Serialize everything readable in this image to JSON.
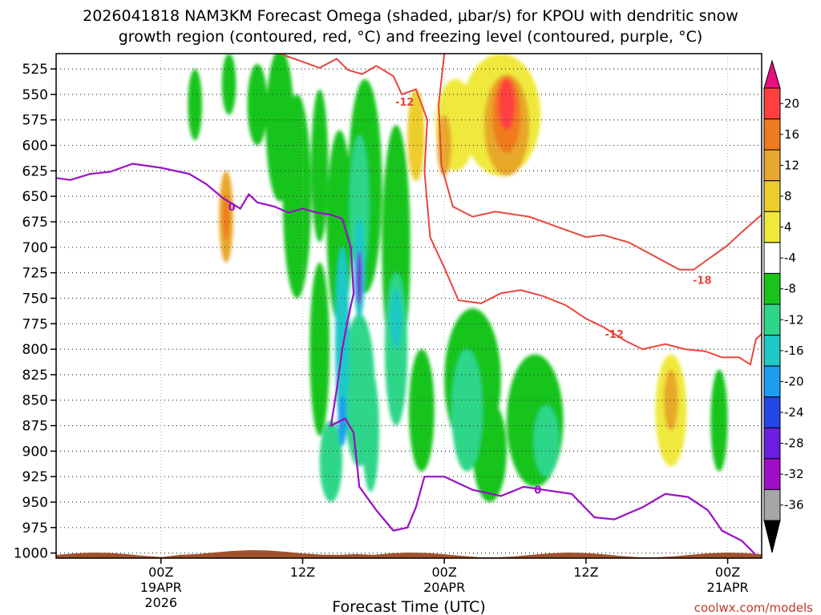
{
  "chart_data": {
    "type": "heatmap",
    "title_line1": "2026041818 NAM3KM Forecast Omega (shaded, μbar/s) for KPOU with dendritic snow",
    "title_line2": "growth region (contoured, red, °C) and freezing level (contoured, purple, °C)",
    "xlabel": "Forecast Time (UTC)",
    "ylabel": "",
    "y_levels_hpa": [
      525,
      550,
      575,
      600,
      625,
      650,
      675,
      700,
      725,
      750,
      775,
      800,
      825,
      850,
      875,
      900,
      925,
      950,
      975,
      1000
    ],
    "ylim": [
      1005,
      510
    ],
    "x_range_hours": [
      -3.7,
      21.2
    ],
    "x_ticks": [
      {
        "hour": 0,
        "lines": [
          "00Z",
          "19APR",
          "2026"
        ]
      },
      {
        "hour": 5,
        "lines": [
          "12Z"
        ]
      },
      {
        "hour": 10,
        "lines": [
          "00Z",
          "20APR"
        ]
      },
      {
        "hour": 15,
        "lines": [
          "12Z"
        ]
      },
      {
        "hour": 20,
        "lines": [
          "00Z",
          "21APR"
        ]
      }
    ],
    "colorbar": {
      "labels": [
        "20",
        "16",
        "12",
        "8",
        "4",
        "-4",
        "-8",
        "-12",
        "-16",
        "-20",
        "-24",
        "-28",
        "-32",
        "-36"
      ],
      "colors": [
        "#ff3f3f",
        "#f07a1e",
        "#e8a82c",
        "#eccd2c",
        "#efe93c",
        "#ffffff",
        "#16c41a",
        "#2ed689",
        "#1ec9c7",
        "#1b9ef0",
        "#2447e6",
        "#6b1de0",
        "#a10ec9",
        "#a6a6a6"
      ],
      "top_arrow_color": "#e8117e",
      "bottom_arrow_color": "#000000"
    },
    "contour_labels": [
      {
        "text": "-12",
        "color": "red",
        "p": 557,
        "t": 8.6
      },
      {
        "text": "-18",
        "color": "red",
        "p": 732,
        "t": 19.1
      },
      {
        "text": "-12",
        "color": "red",
        "p": 785,
        "t": 16.0
      },
      {
        "text": "0",
        "color": "purple",
        "p": 660,
        "t": 2.5
      },
      {
        "text": "0",
        "color": "purple",
        "p": 938,
        "t": 13.3
      }
    ],
    "freezing_level_contour": [
      {
        "t": -3.7,
        "p": 632
      },
      {
        "t": -3.2,
        "p": 634
      },
      {
        "t": -2.5,
        "p": 628
      },
      {
        "t": -1.8,
        "p": 626
      },
      {
        "t": -1.0,
        "p": 618
      },
      {
        "t": 0.0,
        "p": 622
      },
      {
        "t": 1.0,
        "p": 628
      },
      {
        "t": 1.6,
        "p": 638
      },
      {
        "t": 2.2,
        "p": 652
      },
      {
        "t": 2.8,
        "p": 662
      },
      {
        "t": 3.1,
        "p": 648
      },
      {
        "t": 3.4,
        "p": 656
      },
      {
        "t": 4.0,
        "p": 660
      },
      {
        "t": 4.5,
        "p": 666
      },
      {
        "t": 5.0,
        "p": 662
      },
      {
        "t": 5.5,
        "p": 666
      },
      {
        "t": 6.0,
        "p": 668
      },
      {
        "t": 6.4,
        "p": 672
      },
      {
        "t": 6.7,
        "p": 700
      },
      {
        "t": 6.8,
        "p": 745
      },
      {
        "t": 6.6,
        "p": 770
      },
      {
        "t": 6.4,
        "p": 800
      },
      {
        "t": 6.2,
        "p": 840
      },
      {
        "t": 6.0,
        "p": 875
      },
      {
        "t": 6.5,
        "p": 868
      },
      {
        "t": 6.8,
        "p": 882
      },
      {
        "t": 7.0,
        "p": 935
      },
      {
        "t": 7.6,
        "p": 958
      },
      {
        "t": 8.2,
        "p": 978
      },
      {
        "t": 8.7,
        "p": 975
      },
      {
        "t": 9.0,
        "p": 955
      },
      {
        "t": 9.3,
        "p": 925
      },
      {
        "t": 10.0,
        "p": 925
      },
      {
        "t": 11.0,
        "p": 938
      },
      {
        "t": 12.0,
        "p": 944
      },
      {
        "t": 12.8,
        "p": 935
      },
      {
        "t": 13.5,
        "p": 938
      },
      {
        "t": 14.5,
        "p": 942
      },
      {
        "t": 15.3,
        "p": 965
      },
      {
        "t": 16.0,
        "p": 967
      },
      {
        "t": 17.0,
        "p": 955
      },
      {
        "t": 17.8,
        "p": 942
      },
      {
        "t": 18.6,
        "p": 945
      },
      {
        "t": 19.3,
        "p": 958
      },
      {
        "t": 19.8,
        "p": 978
      },
      {
        "t": 20.5,
        "p": 988
      },
      {
        "t": 21.0,
        "p": 1002
      }
    ],
    "dgz_contour_upper": [
      {
        "t": 4.2,
        "p": 510
      },
      {
        "t": 5.0,
        "p": 518
      },
      {
        "t": 5.6,
        "p": 524
      },
      {
        "t": 6.2,
        "p": 515
      },
      {
        "t": 6.6,
        "p": 526
      },
      {
        "t": 7.1,
        "p": 530
      },
      {
        "t": 7.6,
        "p": 522
      },
      {
        "t": 8.2,
        "p": 532
      },
      {
        "t": 8.5,
        "p": 550
      },
      {
        "t": 9.0,
        "p": 545
      },
      {
        "t": 9.4,
        "p": 575
      },
      {
        "t": 9.3,
        "p": 625
      },
      {
        "t": 9.5,
        "p": 690
      },
      {
        "t": 10.0,
        "p": 720
      },
      {
        "t": 10.5,
        "p": 752
      },
      {
        "t": 11.3,
        "p": 755
      },
      {
        "t": 12.0,
        "p": 745
      },
      {
        "t": 12.7,
        "p": 742
      },
      {
        "t": 13.5,
        "p": 748
      },
      {
        "t": 14.3,
        "p": 757
      },
      {
        "t": 15.0,
        "p": 770
      },
      {
        "t": 15.6,
        "p": 778
      }
    ],
    "dgz_contour_lower": [
      {
        "t": 10.0,
        "p": 510
      },
      {
        "t": 9.8,
        "p": 560
      },
      {
        "t": 9.9,
        "p": 620
      },
      {
        "t": 10.3,
        "p": 660
      },
      {
        "t": 11.0,
        "p": 670
      },
      {
        "t": 11.8,
        "p": 665
      },
      {
        "t": 13.0,
        "p": 670
      },
      {
        "t": 14.0,
        "p": 680
      },
      {
        "t": 15.0,
        "p": 690
      },
      {
        "t": 15.6,
        "p": 688
      },
      {
        "t": 16.5,
        "p": 695
      },
      {
        "t": 17.5,
        "p": 710
      },
      {
        "t": 18.3,
        "p": 722
      },
      {
        "t": 18.8,
        "p": 722
      },
      {
        "t": 19.4,
        "p": 710
      },
      {
        "t": 20.0,
        "p": 698
      },
      {
        "t": 20.5,
        "p": 685
      },
      {
        "t": 21.2,
        "p": 668
      }
    ],
    "dgz_contour_bottom": [
      {
        "t": 15.6,
        "p": 778
      },
      {
        "t": 16.4,
        "p": 792
      },
      {
        "t": 17.0,
        "p": 800
      },
      {
        "t": 17.8,
        "p": 795
      },
      {
        "t": 18.5,
        "p": 800
      },
      {
        "t": 19.2,
        "p": 802
      },
      {
        "t": 19.8,
        "p": 808
      },
      {
        "t": 20.4,
        "p": 808
      },
      {
        "t": 20.8,
        "p": 815
      },
      {
        "t": 21.0,
        "p": 790
      },
      {
        "t": 21.2,
        "p": 785
      }
    ],
    "omega_blobs": [
      {
        "t": 2.3,
        "p": 670,
        "dt": 0.25,
        "dp": 90,
        "v": 8
      },
      {
        "t": 2.3,
        "p": 670,
        "dt": 0.12,
        "dp": 45,
        "v": 12
      },
      {
        "t": 1.2,
        "p": 560,
        "dt": 0.25,
        "dp": 70,
        "v": -6
      },
      {
        "t": 2.4,
        "p": 540,
        "dt": 0.25,
        "dp": 60,
        "v": -6
      },
      {
        "t": 3.4,
        "p": 560,
        "dt": 0.35,
        "dp": 80,
        "v": -6
      },
      {
        "t": 4.2,
        "p": 580,
        "dt": 0.5,
        "dp": 150,
        "v": -6
      },
      {
        "t": 4.8,
        "p": 650,
        "dt": 0.5,
        "dp": 200,
        "v": -6
      },
      {
        "t": 5.6,
        "p": 620,
        "dt": 0.3,
        "dp": 150,
        "v": -6
      },
      {
        "t": 5.6,
        "p": 800,
        "dt": 0.35,
        "dp": 170,
        "v": -6
      },
      {
        "t": 6.3,
        "p": 680,
        "dt": 0.45,
        "dp": 190,
        "v": -6
      },
      {
        "t": 6.0,
        "p": 910,
        "dt": 0.4,
        "dp": 80,
        "v": -10
      },
      {
        "t": 6.4,
        "p": 790,
        "dt": 0.25,
        "dp": 180,
        "v": -12
      },
      {
        "t": 6.4,
        "p": 870,
        "dt": 0.15,
        "dp": 50,
        "v": -16
      },
      {
        "t": 7.2,
        "p": 640,
        "dt": 0.6,
        "dp": 210,
        "v": -6
      },
      {
        "t": 7.0,
        "p": 840,
        "dt": 0.55,
        "dp": 150,
        "v": -8
      },
      {
        "t": 7.0,
        "p": 660,
        "dt": 0.35,
        "dp": 140,
        "v": -8
      },
      {
        "t": 7.0,
        "p": 720,
        "dt": 0.2,
        "dp": 100,
        "v": -14
      },
      {
        "t": 7.0,
        "p": 730,
        "dt": 0.1,
        "dp": 55,
        "v": -24
      },
      {
        "t": 7.4,
        "p": 880,
        "dt": 0.3,
        "dp": 120,
        "v": -10
      },
      {
        "t": 8.3,
        "p": 700,
        "dt": 0.5,
        "dp": 240,
        "v": -6
      },
      {
        "t": 8.3,
        "p": 800,
        "dt": 0.4,
        "dp": 150,
        "v": -8
      },
      {
        "t": 8.3,
        "p": 770,
        "dt": 0.2,
        "dp": 60,
        "v": -12
      },
      {
        "t": 9.2,
        "p": 860,
        "dt": 0.45,
        "dp": 120,
        "v": -6
      },
      {
        "t": 9.0,
        "p": 590,
        "dt": 0.3,
        "dp": 90,
        "v": 6
      },
      {
        "t": 10.4,
        "p": 580,
        "dt": 0.7,
        "dp": 90,
        "v": 5
      },
      {
        "t": 10.0,
        "p": 600,
        "dt": 0.25,
        "dp": 60,
        "v": 8
      },
      {
        "t": 12.0,
        "p": 570,
        "dt": 1.4,
        "dp": 120,
        "v": 5
      },
      {
        "t": 12.2,
        "p": 580,
        "dt": 0.8,
        "dp": 100,
        "v": 8
      },
      {
        "t": 12.2,
        "p": 570,
        "dt": 0.5,
        "dp": 75,
        "v": 12
      },
      {
        "t": 12.2,
        "p": 560,
        "dt": 0.3,
        "dp": 50,
        "v": 16
      },
      {
        "t": 11.0,
        "p": 830,
        "dt": 1.0,
        "dp": 140,
        "v": -6
      },
      {
        "t": 10.8,
        "p": 860,
        "dt": 0.55,
        "dp": 120,
        "v": -8
      },
      {
        "t": 11.6,
        "p": 900,
        "dt": 0.6,
        "dp": 100,
        "v": -6
      },
      {
        "t": 13.2,
        "p": 870,
        "dt": 1.0,
        "dp": 130,
        "v": -6
      },
      {
        "t": 13.6,
        "p": 890,
        "dt": 0.45,
        "dp": 70,
        "v": -8
      },
      {
        "t": 18.0,
        "p": 860,
        "dt": 0.55,
        "dp": 110,
        "v": 4
      },
      {
        "t": 18.0,
        "p": 850,
        "dt": 0.25,
        "dp": 60,
        "v": 8
      },
      {
        "t": 19.7,
        "p": 870,
        "dt": 0.3,
        "dp": 100,
        "v": -6
      }
    ],
    "terrain_surface_hpa": 1005,
    "credit": "coolwx.com/models"
  }
}
